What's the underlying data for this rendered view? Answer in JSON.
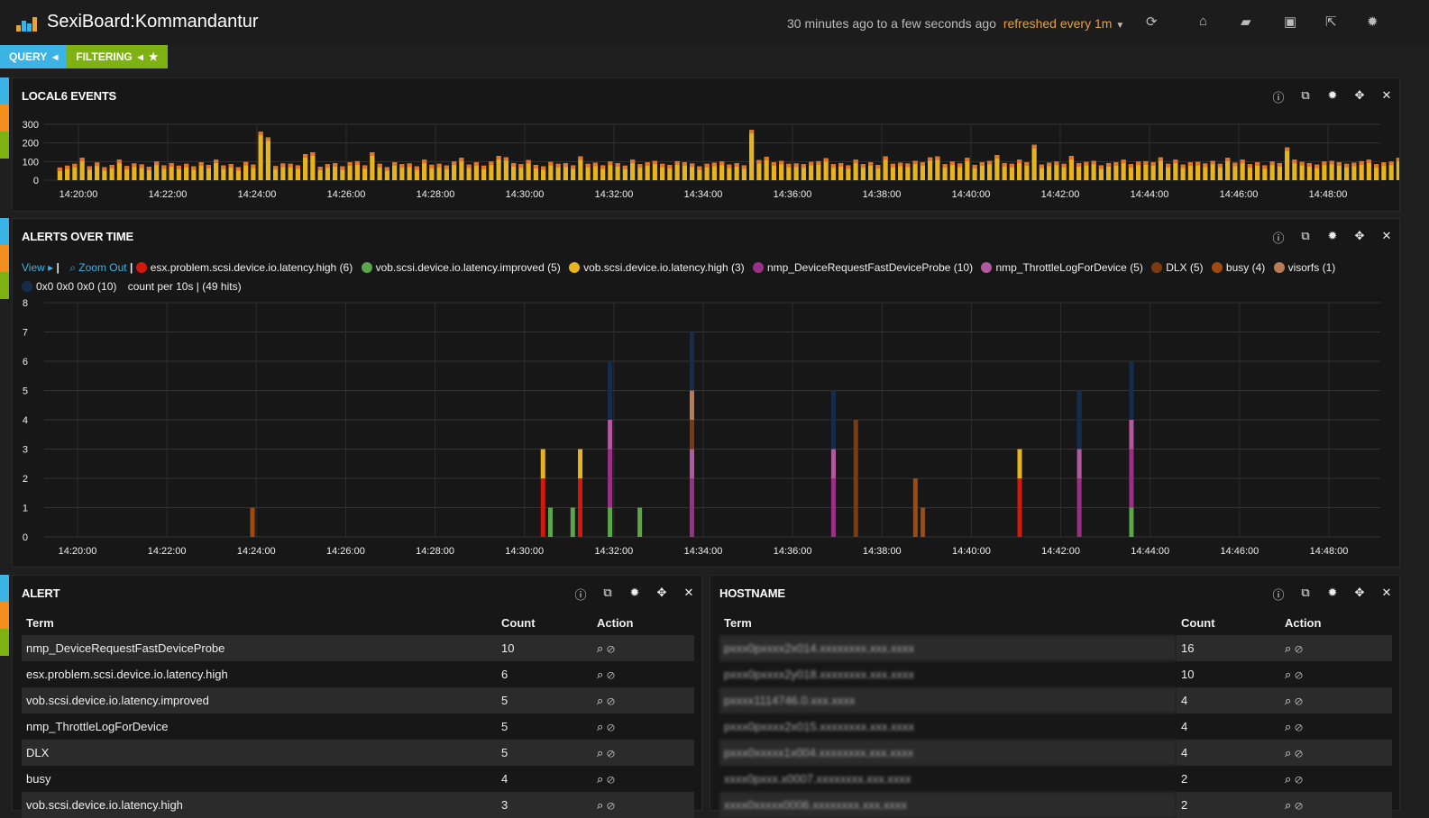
{
  "header": {
    "title": "SexiBoard:Kommandantur",
    "time_range": "30 minutes ago to a few seconds ago",
    "refresh": "refreshed every 1m",
    "icons": [
      "refresh-icon",
      "home-icon",
      "folder-open-icon",
      "save-icon",
      "share-icon",
      "gear-icon"
    ]
  },
  "pills": {
    "query": "QUERY",
    "filtering": "FILTERING"
  },
  "row_colors": [
    "#3cb3e5",
    "#f28e1c",
    "#7eb213"
  ],
  "events_panel": {
    "title": "LOCAL6 EVENTS",
    "y_ticks": [
      "0",
      "100",
      "200",
      "300"
    ],
    "x_ticks": [
      "14:20:00",
      "14:22:00",
      "14:24:00",
      "14:26:00",
      "14:28:00",
      "14:30:00",
      "14:32:00",
      "14:34:00",
      "14:36:00",
      "14:38:00",
      "14:40:00",
      "14:42:00",
      "14:44:00",
      "14:46:00",
      "14:48:00"
    ]
  },
  "alerts_panel": {
    "title": "ALERTS OVER TIME",
    "view_label": "View",
    "zoom_label": "Zoom Out",
    "legend": [
      {
        "label": "esx.problem.scsi.device.io.latency.high (6)",
        "color": "#d3180e"
      },
      {
        "label": "vob.scsi.device.io.latency.improved (5)",
        "color": "#5ca64a"
      },
      {
        "label": "vob.scsi.device.io.latency.high (3)",
        "color": "#e8b41e"
      },
      {
        "label": "nmp_DeviceRequestFastDeviceProbe (10)",
        "color": "#9b2f86"
      },
      {
        "label": "nmp_ThrottleLogForDevice (5)",
        "color": "#b3589e"
      },
      {
        "label": "DLX (5)",
        "color": "#7d3a10"
      },
      {
        "label": "busy (4)",
        "color": "#a04a0e"
      },
      {
        "label": "visorfs (1)",
        "color": "#b97a55"
      },
      {
        "label": "0x0 0x0 0x0 (10)",
        "color": "#152d4d"
      }
    ],
    "count_text": "count per 10s | (49 hits)",
    "y_ticks": [
      "0",
      "1",
      "2",
      "3",
      "4",
      "5",
      "6",
      "7",
      "8"
    ],
    "x_ticks": [
      "14:20:00",
      "14:22:00",
      "14:24:00",
      "14:26:00",
      "14:28:00",
      "14:30:00",
      "14:32:00",
      "14:34:00",
      "14:36:00",
      "14:38:00",
      "14:40:00",
      "14:42:00",
      "14:44:00",
      "14:46:00",
      "14:48:00"
    ]
  },
  "alert_table": {
    "title": "ALERT",
    "headers": [
      "Term",
      "Count",
      "Action"
    ],
    "rows": [
      {
        "term": "nmp_DeviceRequestFastDeviceProbe",
        "count": "10"
      },
      {
        "term": "esx.problem.scsi.device.io.latency.high",
        "count": "6"
      },
      {
        "term": "vob.scsi.device.io.latency.improved",
        "count": "5"
      },
      {
        "term": "nmp_ThrottleLogForDevice",
        "count": "5"
      },
      {
        "term": "DLX",
        "count": "5"
      },
      {
        "term": "busy",
        "count": "4"
      },
      {
        "term": "vob.scsi.device.io.latency.high",
        "count": "3"
      }
    ]
  },
  "hostname_table": {
    "title": "HOSTNAME",
    "headers": [
      "Term",
      "Count",
      "Action"
    ],
    "rows": [
      {
        "term": "pxxx0pxxxx2x014.xxxxxxxx.xxx.xxxx",
        "count": "16"
      },
      {
        "term": "pxxx0pxxxx2y018.xxxxxxxx.xxx.xxxx",
        "count": "10"
      },
      {
        "term": "pxxxx1114746.0.xxx.xxxx",
        "count": "4"
      },
      {
        "term": "pxxx0pxxxx2x015.xxxxxxxx.xxx.xxxx",
        "count": "4"
      },
      {
        "term": "pxxx0xxxxx1x004.xxxxxxxx.xxx.xxxx",
        "count": "4"
      },
      {
        "term": "xxxx0pxxx.x0007.xxxxxxxx.xxx.xxxx",
        "count": "2"
      },
      {
        "term": "xxxx0xxxxx0006.xxxxxxxx.xxx.xxxx",
        "count": "2"
      }
    ]
  },
  "chart_data": [
    {
      "type": "bar",
      "title": "LOCAL6 EVENTS",
      "ylim": [
        0,
        300
      ],
      "x_range": [
        "14:19:00",
        "14:49:00"
      ],
      "interval": "10s",
      "values": [
        68,
        78,
        88,
        120,
        75,
        95,
        70,
        82,
        110,
        76,
        90,
        85,
        72,
        100,
        80,
        92,
        78,
        88,
        74,
        96,
        82,
        110,
        79,
        87,
        70,
        98,
        84,
        260,
        230,
        76,
        90,
        88,
        80,
        140,
        150,
        72,
        86,
        92,
        74,
        96,
        102,
        80,
        150,
        88,
        70,
        96,
        86,
        90,
        74,
        110,
        83,
        88,
        79,
        100,
        120,
        84,
        96,
        78,
        100,
        130,
        123,
        92,
        86,
        108,
        82,
        74,
        98,
        88,
        91,
        80,
        128,
        88,
        94,
        80,
        100,
        92,
        78,
        110,
        86,
        96,
        104,
        88,
        82,
        102,
        96,
        90,
        74,
        88,
        94,
        100,
        84,
        92,
        80,
        270,
        108,
        126,
        96,
        104,
        88,
        90,
        86,
        98,
        102,
        118,
        86,
        92,
        80,
        110,
        86,
        96,
        82,
        128,
        88,
        94,
        90,
        104,
        96,
        122,
        128,
        86,
        100,
        90,
        120,
        82,
        96,
        104,
        135,
        92,
        88,
        110,
        96,
        190,
        84,
        94,
        100,
        88,
        130,
        92,
        98,
        104,
        80,
        92,
        96,
        110,
        86,
        100,
        102,
        96,
        122,
        88,
        110,
        84,
        96,
        98,
        90,
        104,
        88,
        120,
        94,
        110,
        86,
        96,
        80,
        100,
        92,
        176,
        110,
        98,
        92,
        84,
        100,
        104,
        96,
        88,
        94,
        102,
        110,
        86,
        96,
        100,
        120,
        124,
        88,
        102,
        94,
        110,
        120,
        94,
        96,
        104,
        88,
        100,
        86,
        80,
        96,
        110,
        86,
        160,
        98,
        110,
        88,
        92,
        130
      ],
      "xlabel": "",
      "ylabel": ""
    },
    {
      "type": "bar",
      "title": "ALERTS OVER TIME",
      "ylim": [
        0,
        8
      ],
      "stacked": true,
      "bars": [
        {
          "time": "14:23:50",
          "stack": [
            {
              "series": "busy",
              "value": 1
            }
          ]
        },
        {
          "time": "14:30:20",
          "stack": [
            {
              "series": "esx.problem.scsi.device.io.latency.high",
              "value": 2
            },
            {
              "series": "vob.scsi.device.io.latency.high",
              "value": 1
            }
          ]
        },
        {
          "time": "14:30:30",
          "stack": [
            {
              "series": "vob.scsi.device.io.latency.improved",
              "value": 1
            }
          ]
        },
        {
          "time": "14:31:00",
          "stack": [
            {
              "series": "vob.scsi.device.io.latency.improved",
              "value": 1
            }
          ]
        },
        {
          "time": "14:31:10",
          "stack": [
            {
              "series": "esx.problem.scsi.device.io.latency.high",
              "value": 2
            },
            {
              "series": "vob.scsi.device.io.latency.high",
              "value": 1
            }
          ]
        },
        {
          "time": "14:31:50",
          "stack": [
            {
              "series": "vob.scsi.device.io.latency.improved",
              "value": 1
            },
            {
              "series": "nmp_DeviceRequestFastDeviceProbe",
              "value": 2
            },
            {
              "series": "nmp_ThrottleLogForDevice",
              "value": 1
            },
            {
              "series": "0x0 0x0 0x0",
              "value": 2
            }
          ]
        },
        {
          "time": "14:32:30",
          "stack": [
            {
              "series": "vob.scsi.device.io.latency.improved",
              "value": 1
            }
          ]
        },
        {
          "time": "14:33:40",
          "stack": [
            {
              "series": "nmp_DeviceRequestFastDeviceProbe",
              "value": 2
            },
            {
              "series": "nmp_ThrottleLogForDevice",
              "value": 1
            },
            {
              "series": "DLX",
              "value": 1
            },
            {
              "series": "visorfs",
              "value": 1
            },
            {
              "series": "0x0 0x0 0x0",
              "value": 2
            }
          ]
        },
        {
          "time": "14:36:50",
          "stack": [
            {
              "series": "nmp_DeviceRequestFastDeviceProbe",
              "value": 2
            },
            {
              "series": "nmp_ThrottleLogForDevice",
              "value": 1
            },
            {
              "series": "0x0 0x0 0x0",
              "value": 2
            }
          ]
        },
        {
          "time": "14:37:20",
          "stack": [
            {
              "series": "DLX",
              "value": 4
            }
          ]
        },
        {
          "time": "14:38:40",
          "stack": [
            {
              "series": "busy",
              "value": 2
            }
          ]
        },
        {
          "time": "14:38:50",
          "stack": [
            {
              "series": "busy",
              "value": 1
            }
          ]
        },
        {
          "time": "14:41:00",
          "stack": [
            {
              "series": "esx.problem.scsi.device.io.latency.high",
              "value": 2
            },
            {
              "series": "vob.scsi.device.io.latency.high",
              "value": 1
            }
          ]
        },
        {
          "time": "14:42:20",
          "stack": [
            {
              "series": "nmp_DeviceRequestFastDeviceProbe",
              "value": 2
            },
            {
              "series": "nmp_ThrottleLogForDevice",
              "value": 1
            },
            {
              "series": "0x0 0x0 0x0",
              "value": 2
            }
          ]
        },
        {
          "time": "14:43:30",
          "stack": [
            {
              "series": "vob.scsi.device.io.latency.improved",
              "value": 1
            },
            {
              "series": "nmp_DeviceRequestFastDeviceProbe",
              "value": 2
            },
            {
              "series": "nmp_ThrottleLogForDevice",
              "value": 1
            },
            {
              "series": "0x0 0x0 0x0",
              "value": 2
            }
          ]
        }
      ],
      "xlabel": "",
      "ylabel": ""
    }
  ]
}
